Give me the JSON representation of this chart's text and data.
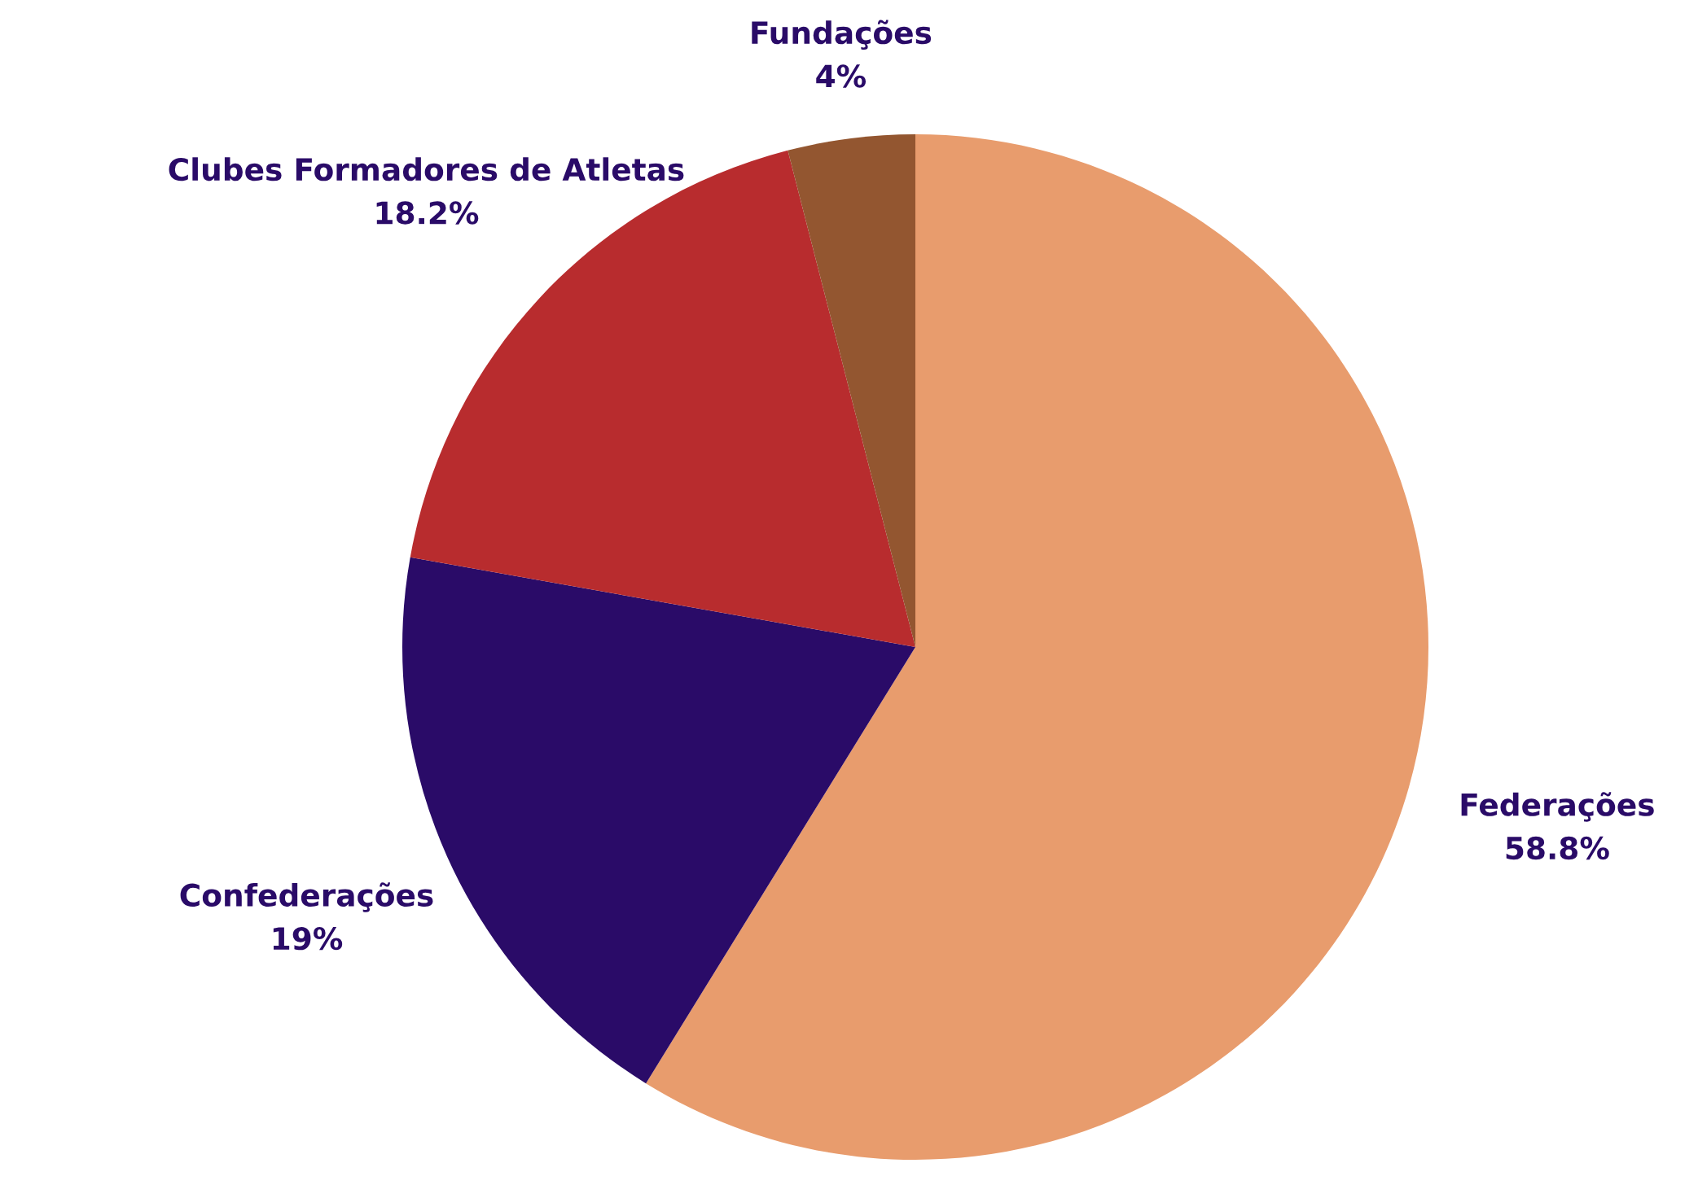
{
  "chart_data": {
    "type": "pie",
    "categories": [
      "Federações",
      "Confederações",
      "Clubes Formadores de Atletas",
      "Fundações"
    ],
    "values": [
      58.8,
      19,
      18.2,
      4
    ],
    "value_labels": [
      "58.8%",
      "19%",
      "18.2%",
      "4%"
    ],
    "colors": [
      "#e89c6d",
      "#2a0b68",
      "#b82c2e",
      "#935630"
    ]
  }
}
